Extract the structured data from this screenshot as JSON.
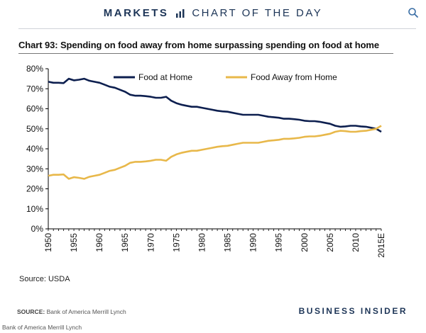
{
  "header": {
    "left_word": "MARKETS",
    "right_words": "CHART OF THE DAY",
    "accent_color": "#1d3557",
    "icons": {
      "bars": "bar-chart-icon",
      "search": "search-icon"
    }
  },
  "chart_title": "Chart 93: Spending on food away from home surpassing spending on food at home",
  "source_note": "Source: USDA",
  "footer": {
    "source_label": "SOURCE:",
    "source_text": "Bank of America Merrill Lynch",
    "brand": "BUSINESS INSIDER",
    "credit": "Bank  of America Merrill Lynch"
  },
  "chart_data": {
    "type": "line",
    "x_labels": [
      "1950",
      "1955",
      "1960",
      "1965",
      "1970",
      "1975",
      "1980",
      "1985",
      "1990",
      "1995",
      "2000",
      "2005",
      "2010",
      "2015E"
    ],
    "x": [
      1950,
      1951,
      1952,
      1953,
      1954,
      1955,
      1956,
      1957,
      1958,
      1959,
      1960,
      1961,
      1962,
      1963,
      1964,
      1965,
      1966,
      1967,
      1968,
      1969,
      1970,
      1971,
      1972,
      1973,
      1974,
      1975,
      1976,
      1977,
      1978,
      1979,
      1980,
      1981,
      1982,
      1983,
      1984,
      1985,
      1986,
      1987,
      1988,
      1989,
      1990,
      1991,
      1992,
      1993,
      1994,
      1995,
      1996,
      1997,
      1998,
      1999,
      2000,
      2001,
      2002,
      2003,
      2004,
      2005,
      2006,
      2007,
      2008,
      2009,
      2010,
      2011,
      2012,
      2013,
      2014,
      2015
    ],
    "series": [
      {
        "name": "Food at Home",
        "color": "#0d1f4f",
        "values": [
          73.5,
          73.0,
          73.0,
          72.8,
          75.0,
          74.2,
          74.5,
          75.0,
          74.0,
          73.5,
          73.0,
          72.0,
          71.0,
          70.5,
          69.5,
          68.5,
          67.0,
          66.5,
          66.5,
          66.3,
          66.0,
          65.5,
          65.5,
          66.0,
          64.0,
          62.8,
          62.0,
          61.5,
          61.0,
          61.0,
          60.5,
          60.0,
          59.5,
          59.0,
          58.7,
          58.5,
          58.0,
          57.5,
          57.0,
          57.0,
          57.0,
          57.0,
          56.5,
          56.0,
          55.8,
          55.5,
          55.0,
          55.0,
          54.8,
          54.5,
          54.0,
          53.8,
          53.8,
          53.5,
          53.0,
          52.5,
          51.5,
          51.0,
          51.2,
          51.5,
          51.5,
          51.2,
          51.0,
          50.5,
          50.0,
          48.5
        ]
      },
      {
        "name": "Food Away from Home",
        "color": "#e8b84a",
        "values": [
          26.5,
          27.0,
          27.0,
          27.2,
          25.0,
          25.8,
          25.5,
          25.0,
          26.0,
          26.5,
          27.0,
          28.0,
          29.0,
          29.5,
          30.5,
          31.5,
          33.0,
          33.5,
          33.5,
          33.7,
          34.0,
          34.5,
          34.5,
          34.0,
          36.0,
          37.2,
          38.0,
          38.5,
          39.0,
          39.0,
          39.5,
          40.0,
          40.5,
          41.0,
          41.3,
          41.5,
          42.0,
          42.5,
          43.0,
          43.0,
          43.0,
          43.0,
          43.5,
          44.0,
          44.2,
          44.5,
          45.0,
          45.0,
          45.2,
          45.5,
          46.0,
          46.2,
          46.2,
          46.5,
          47.0,
          47.5,
          48.5,
          49.0,
          48.8,
          48.5,
          48.5,
          48.8,
          49.0,
          49.5,
          50.0,
          51.5
        ]
      }
    ],
    "y_ticks": [
      "0%",
      "10%",
      "20%",
      "30%",
      "40%",
      "50%",
      "60%",
      "70%",
      "80%"
    ],
    "ylim": [
      0,
      80
    ],
    "xlim": [
      1950,
      2015
    ],
    "legend_position": "top",
    "grid": false
  }
}
